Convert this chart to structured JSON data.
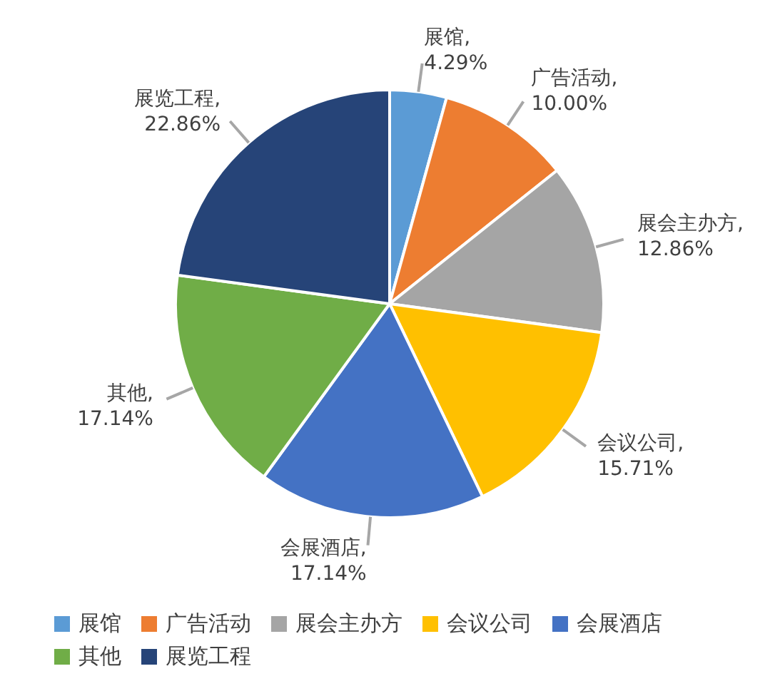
{
  "chart_data": {
    "type": "pie",
    "categories": [
      "展馆",
      "广告活动",
      "展会主办方",
      "会议公司",
      "会展酒店",
      "其他",
      "展览工程"
    ],
    "values": [
      4.29,
      10.0,
      12.86,
      15.71,
      17.14,
      17.14,
      22.86
    ],
    "value_labels": [
      "展馆, 4.29%",
      "广告活动, 10.00%",
      "展会主办方, 12.86%",
      "会议公司, 15.71%",
      "会展酒店, 17.14%",
      "其他, 17.14%",
      "展览工程, 22.86%"
    ],
    "colors": [
      "#5b9bd5",
      "#ed7d31",
      "#a5a5a5",
      "#ffc000",
      "#4472c4",
      "#70ad47",
      "#264478"
    ],
    "legend": "bottom"
  }
}
